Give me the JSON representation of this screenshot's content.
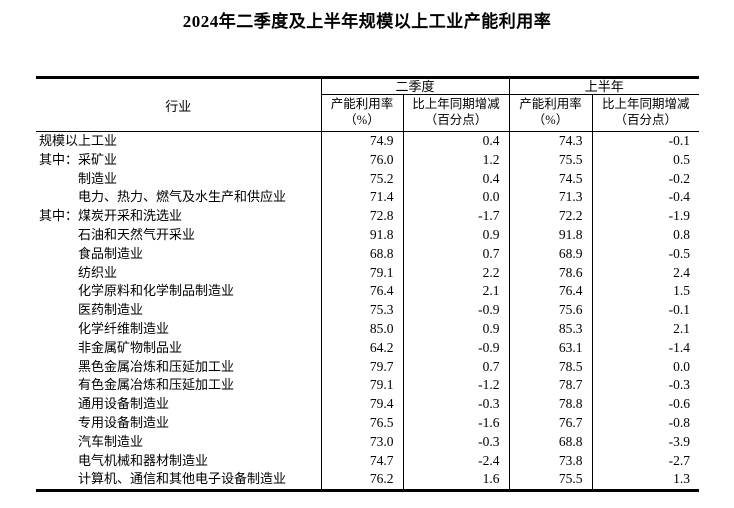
{
  "page": {
    "title": "2024年二季度及上半年规模以上工业产能利用率"
  },
  "table": {
    "industry_column_header": "行业",
    "group_headers": {
      "q2": "二季度",
      "h1": "上半年"
    },
    "sub_headers": [
      {
        "line1": "产能利用率",
        "line2": "（%）"
      },
      {
        "line1": "比上年同期增减",
        "line2": "（百分点）"
      },
      {
        "line1": "产能利用率",
        "line2": "（%）"
      },
      {
        "line1": "比上年同期增减",
        "line2": "（百分点）"
      }
    ],
    "rows": [
      {
        "label": "规模以上工业",
        "indent": 0,
        "values": [
          "74.9",
          "0.4",
          "74.3",
          "-0.1"
        ]
      },
      {
        "label": "其中：采矿业",
        "indent": 0,
        "values": [
          "76.0",
          "1.2",
          "75.5",
          "0.5"
        ]
      },
      {
        "label": "制造业",
        "indent": 1,
        "values": [
          "75.2",
          "0.4",
          "74.5",
          "-0.2"
        ]
      },
      {
        "label": "电力、热力、燃气及水生产和供应业",
        "indent": 1,
        "values": [
          "71.4",
          "0.0",
          "71.3",
          "-0.4"
        ]
      },
      {
        "label": "其中：煤炭开采和洗选业",
        "indent": 0,
        "values": [
          "72.8",
          "-1.7",
          "72.2",
          "-1.9"
        ]
      },
      {
        "label": "石油和天然气开采业",
        "indent": 1,
        "values": [
          "91.8",
          "0.9",
          "91.8",
          "0.8"
        ]
      },
      {
        "label": "食品制造业",
        "indent": 1,
        "values": [
          "68.8",
          "0.7",
          "68.9",
          "-0.5"
        ]
      },
      {
        "label": "纺织业",
        "indent": 1,
        "values": [
          "79.1",
          "2.2",
          "78.6",
          "2.4"
        ]
      },
      {
        "label": "化学原料和化学制品制造业",
        "indent": 1,
        "values": [
          "76.4",
          "2.1",
          "76.4",
          "1.5"
        ]
      },
      {
        "label": "医药制造业",
        "indent": 1,
        "values": [
          "75.3",
          "-0.9",
          "75.6",
          "-0.1"
        ]
      },
      {
        "label": "化学纤维制造业",
        "indent": 1,
        "values": [
          "85.0",
          "0.9",
          "85.3",
          "2.1"
        ]
      },
      {
        "label": "非金属矿物制品业",
        "indent": 1,
        "values": [
          "64.2",
          "-0.9",
          "63.1",
          "-1.4"
        ]
      },
      {
        "label": "黑色金属冶炼和压延加工业",
        "indent": 1,
        "values": [
          "79.7",
          "0.7",
          "78.5",
          "0.0"
        ]
      },
      {
        "label": "有色金属冶炼和压延加工业",
        "indent": 1,
        "values": [
          "79.1",
          "-1.2",
          "78.7",
          "-0.3"
        ]
      },
      {
        "label": "通用设备制造业",
        "indent": 1,
        "values": [
          "79.4",
          "-0.3",
          "78.8",
          "-0.6"
        ]
      },
      {
        "label": "专用设备制造业",
        "indent": 1,
        "values": [
          "76.5",
          "-1.6",
          "76.7",
          "-0.8"
        ]
      },
      {
        "label": "汽车制造业",
        "indent": 1,
        "values": [
          "73.0",
          "-0.3",
          "68.8",
          "-3.9"
        ]
      },
      {
        "label": "电气机械和器材制造业",
        "indent": 1,
        "values": [
          "74.7",
          "-2.4",
          "73.8",
          "-2.7"
        ]
      },
      {
        "label": "计算机、通信和其他电子设备制造业",
        "indent": 1,
        "values": [
          "76.2",
          "1.6",
          "75.5",
          "1.3"
        ]
      }
    ]
  }
}
